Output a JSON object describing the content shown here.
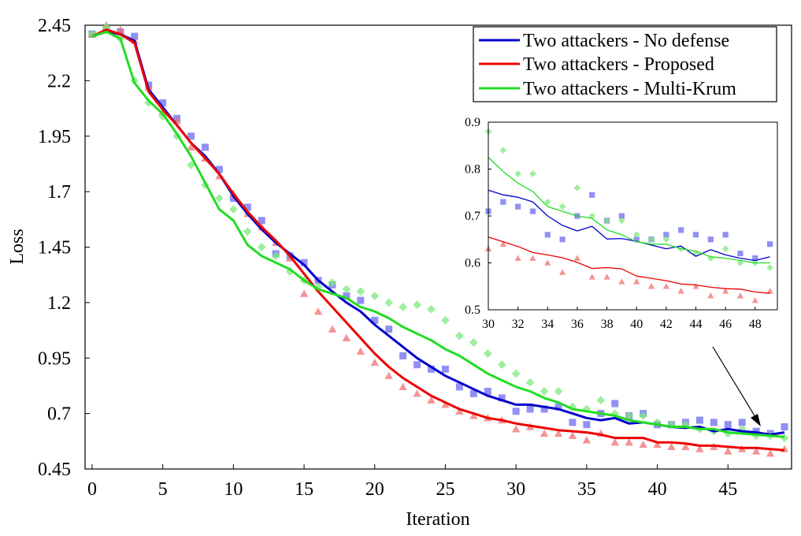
{
  "chart_data": {
    "type": "line",
    "title": "",
    "xlabel": "Iteration",
    "ylabel": "Loss",
    "xlim": [
      -0.5,
      49.5
    ],
    "ylim": [
      0.45,
      2.45
    ],
    "xticks": [
      0,
      5,
      10,
      15,
      20,
      25,
      30,
      35,
      40,
      45
    ],
    "xtick_labels": [
      "0",
      "5",
      "10",
      "15",
      "20",
      "25",
      "30",
      "35",
      "40",
      "45"
    ],
    "yticks": [
      0.45,
      0.7,
      0.95,
      1.2,
      1.45,
      1.7,
      1.95,
      2.2,
      2.45
    ],
    "ytick_labels": [
      "0.45",
      "0.7",
      "0.95",
      "1.2",
      "1.45",
      "1.7",
      "1.95",
      "2.2",
      "2.45"
    ],
    "legend_position": "top-right",
    "x": [
      0,
      1,
      2,
      3,
      4,
      5,
      6,
      7,
      8,
      9,
      10,
      11,
      12,
      13,
      14,
      15,
      16,
      17,
      18,
      19,
      20,
      21,
      22,
      23,
      24,
      25,
      26,
      27,
      28,
      29,
      30,
      31,
      32,
      33,
      34,
      35,
      36,
      37,
      38,
      39,
      40,
      41,
      42,
      43,
      44,
      45,
      46,
      47,
      48,
      49
    ],
    "series": [
      {
        "name": "Two attackers - No defense",
        "color": "#0000cc",
        "marker": "square",
        "marker_color": "#6b6bf0",
        "values": [
          2.4,
          2.42,
          2.41,
          2.38,
          2.16,
          2.08,
          2.0,
          1.92,
          1.86,
          1.78,
          1.68,
          1.6,
          1.53,
          1.47,
          1.42,
          1.37,
          1.3,
          1.25,
          1.2,
          1.16,
          1.1,
          1.05,
          1.0,
          0.95,
          0.91,
          0.87,
          0.84,
          0.81,
          0.78,
          0.76,
          0.74,
          0.74,
          0.73,
          0.72,
          0.7,
          0.68,
          0.67,
          0.68,
          0.655,
          0.66,
          0.65,
          0.64,
          0.635,
          0.64,
          0.62,
          0.63,
          0.62,
          0.615,
          0.605,
          0.615
        ],
        "scatter": [
          2.41,
          2.43,
          2.42,
          2.4,
          2.18,
          2.1,
          2.03,
          1.95,
          1.9,
          1.8,
          1.67,
          1.63,
          1.57,
          1.42,
          1.41,
          1.38,
          1.3,
          1.28,
          1.23,
          1.21,
          1.12,
          1.08,
          0.96,
          0.92,
          0.9,
          0.9,
          0.82,
          0.79,
          0.8,
          0.77,
          0.71,
          0.72,
          0.72,
          0.73,
          0.66,
          0.65,
          0.7,
          0.745,
          0.69,
          0.7,
          0.65,
          0.65,
          0.66,
          0.67,
          0.66,
          0.65,
          0.66,
          0.62,
          0.61,
          0.64
        ]
      },
      {
        "name": "Two attackers - Proposed",
        "color": "#ee0000",
        "marker": "triangle",
        "marker_color": "#f07070",
        "values": [
          2.4,
          2.43,
          2.41,
          2.37,
          2.15,
          2.07,
          2.0,
          1.92,
          1.85,
          1.78,
          1.69,
          1.61,
          1.54,
          1.48,
          1.41,
          1.33,
          1.25,
          1.18,
          1.11,
          1.04,
          0.97,
          0.91,
          0.86,
          0.82,
          0.78,
          0.75,
          0.72,
          0.7,
          0.68,
          0.67,
          0.655,
          0.645,
          0.635,
          0.625,
          0.62,
          0.615,
          0.605,
          0.59,
          0.59,
          0.59,
          0.57,
          0.57,
          0.565,
          0.555,
          0.555,
          0.55,
          0.545,
          0.545,
          0.54,
          0.535
        ],
        "scatter": [
          2.41,
          2.45,
          2.43,
          2.38,
          2.17,
          2.06,
          2.02,
          1.9,
          1.85,
          1.77,
          1.69,
          1.6,
          1.54,
          1.47,
          1.4,
          1.24,
          1.16,
          1.08,
          1.04,
          0.98,
          0.93,
          0.87,
          0.82,
          0.79,
          0.76,
          0.74,
          0.71,
          0.69,
          0.68,
          0.67,
          0.63,
          0.64,
          0.61,
          0.61,
          0.6,
          0.58,
          0.61,
          0.57,
          0.57,
          0.56,
          0.56,
          0.55,
          0.55,
          0.54,
          0.55,
          0.53,
          0.54,
          0.53,
          0.52,
          0.54
        ]
      },
      {
        "name": "Two attackers - Multi-Krum",
        "color": "#22dd22",
        "marker": "diamond",
        "marker_color": "#7ee87e",
        "values": [
          2.4,
          2.42,
          2.39,
          2.19,
          2.11,
          2.05,
          1.96,
          1.86,
          1.74,
          1.62,
          1.57,
          1.46,
          1.41,
          1.38,
          1.35,
          1.3,
          1.26,
          1.24,
          1.22,
          1.18,
          1.16,
          1.13,
          1.09,
          1.06,
          1.03,
          0.99,
          0.96,
          0.92,
          0.88,
          0.85,
          0.82,
          0.8,
          0.77,
          0.75,
          0.72,
          0.71,
          0.7,
          0.69,
          0.67,
          0.66,
          0.65,
          0.64,
          0.64,
          0.63,
          0.63,
          0.615,
          0.61,
          0.605,
          0.6,
          0.595
        ],
        "scatter": [
          2.41,
          2.44,
          2.39,
          2.2,
          2.1,
          2.04,
          1.95,
          1.82,
          1.73,
          1.67,
          1.62,
          1.52,
          1.45,
          1.41,
          1.34,
          1.3,
          1.27,
          1.29,
          1.26,
          1.25,
          1.23,
          1.2,
          1.18,
          1.19,
          1.17,
          1.12,
          1.05,
          1.02,
          0.97,
          0.92,
          0.88,
          0.84,
          0.8,
          0.8,
          0.73,
          0.72,
          0.76,
          0.7,
          0.69,
          0.69,
          0.66,
          0.65,
          0.65,
          0.63,
          0.62,
          0.61,
          0.63,
          0.6,
          0.6,
          0.59
        ]
      }
    ],
    "inset": {
      "xlim": [
        30,
        49.5
      ],
      "ylim": [
        0.5,
        0.9
      ],
      "xticks": [
        30,
        32,
        34,
        36,
        38,
        40,
        42,
        44,
        46,
        48
      ],
      "xtick_labels": [
        "30",
        "32",
        "34",
        "36",
        "38",
        "40",
        "42",
        "44",
        "46",
        "48"
      ],
      "yticks": [
        0.5,
        0.6,
        0.7,
        0.8,
        0.9
      ],
      "ytick_labels": [
        "0.5",
        "0.6",
        "0.7",
        "0.8",
        "0.9"
      ],
      "x": [
        30,
        31,
        32,
        33,
        34,
        35,
        36,
        37,
        38,
        39,
        40,
        41,
        42,
        43,
        44,
        45,
        46,
        47,
        48,
        49
      ],
      "series": [
        {
          "name": "Two attackers - No defense",
          "values": [
            0.755,
            0.745,
            0.74,
            0.73,
            0.7,
            0.68,
            0.668,
            0.678,
            0.651,
            0.652,
            0.646,
            0.638,
            0.63,
            0.636,
            0.614,
            0.628,
            0.617,
            0.61,
            0.605,
            0.613
          ],
          "scatter": [
            0.71,
            0.73,
            0.72,
            0.71,
            0.66,
            0.65,
            0.7,
            0.745,
            0.69,
            0.7,
            0.65,
            0.65,
            0.66,
            0.67,
            0.66,
            0.65,
            0.66,
            0.62,
            0.61,
            0.64
          ]
        },
        {
          "name": "Two attackers - Proposed",
          "values": [
            0.655,
            0.645,
            0.635,
            0.622,
            0.617,
            0.611,
            0.601,
            0.588,
            0.59,
            0.587,
            0.572,
            0.567,
            0.562,
            0.555,
            0.553,
            0.548,
            0.545,
            0.544,
            0.538,
            0.535
          ],
          "scatter": [
            0.63,
            0.64,
            0.61,
            0.61,
            0.6,
            0.58,
            0.61,
            0.57,
            0.57,
            0.56,
            0.56,
            0.55,
            0.55,
            0.54,
            0.55,
            0.53,
            0.54,
            0.53,
            0.52,
            0.54
          ]
        },
        {
          "name": "Two attackers - Multi-Krum",
          "values": [
            0.825,
            0.795,
            0.77,
            0.752,
            0.72,
            0.71,
            0.7,
            0.695,
            0.67,
            0.66,
            0.645,
            0.64,
            0.64,
            0.63,
            0.625,
            0.613,
            0.61,
            0.605,
            0.6,
            0.6
          ],
          "scatter": [
            0.88,
            0.84,
            0.79,
            0.79,
            0.73,
            0.72,
            0.76,
            0.7,
            0.69,
            0.69,
            0.66,
            0.65,
            0.65,
            0.63,
            0.62,
            0.61,
            0.63,
            0.6,
            0.6,
            0.59
          ]
        }
      ]
    }
  }
}
